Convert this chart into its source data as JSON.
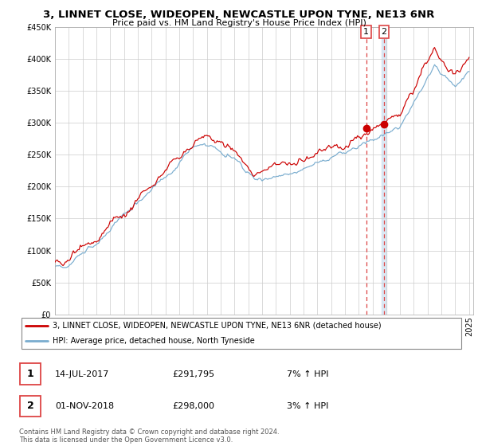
{
  "title": "3, LINNET CLOSE, WIDEOPEN, NEWCASTLE UPON TYNE, NE13 6NR",
  "subtitle": "Price paid vs. HM Land Registry's House Price Index (HPI)",
  "legend_line1": "3, LINNET CLOSE, WIDEOPEN, NEWCASTLE UPON TYNE, NE13 6NR (detached house)",
  "legend_line2": "HPI: Average price, detached house, North Tyneside",
  "annotation1_date": "14-JUL-2017",
  "annotation1_price": "£291,795",
  "annotation1_hpi": "7% ↑ HPI",
  "annotation2_date": "01-NOV-2018",
  "annotation2_price": "£298,000",
  "annotation2_hpi": "3% ↑ HPI",
  "footer": "Contains HM Land Registry data © Crown copyright and database right 2024.\nThis data is licensed under the Open Government Licence v3.0.",
  "line_color_red": "#cc0000",
  "line_color_blue": "#7aadcf",
  "vline_color_red": "#dd4444",
  "vshade_color_blue": "#cce0f0",
  "background_color": "#ffffff",
  "grid_color": "#cccccc",
  "ylim": [
    0,
    450000
  ],
  "yticks": [
    0,
    50000,
    100000,
    150000,
    200000,
    250000,
    300000,
    350000,
    400000,
    450000
  ],
  "year_start": 1995,
  "year_end": 2025,
  "sale1_year": 2017.54,
  "sale1_value": 291795,
  "sale2_year": 2018.84,
  "sale2_value": 298000
}
